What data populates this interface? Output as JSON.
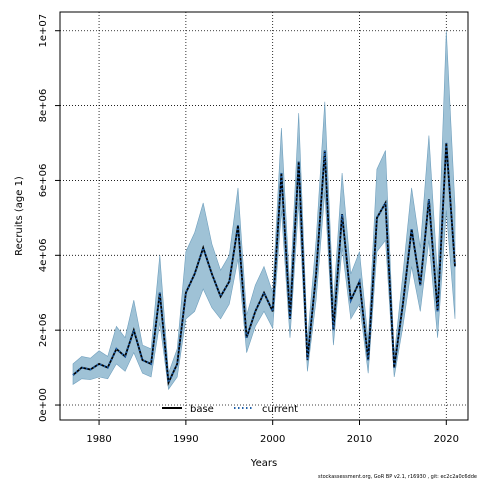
{
  "chart_data": {
    "type": "line",
    "xlabel": "Years",
    "ylabel": "Recruits (age 1)",
    "xlim": [
      1975.5,
      2022.5
    ],
    "ylim": [
      -400000,
      10500000
    ],
    "x_ticks": [
      1980,
      1990,
      2000,
      2010,
      2020
    ],
    "x_tick_labels": [
      "1980",
      "1990",
      "2000",
      "2010",
      "2020"
    ],
    "y_ticks": [
      0,
      2000000,
      4000000,
      6000000,
      8000000,
      10000000
    ],
    "y_tick_labels": [
      "0e+00",
      "2e+06",
      "4e+06",
      "6e+06",
      "8e+06",
      "1e+07"
    ],
    "grid": true,
    "legend_position": "bottom",
    "x": [
      1977,
      1978,
      1979,
      1980,
      1981,
      1982,
      1983,
      1984,
      1985,
      1986,
      1987,
      1988,
      1989,
      1990,
      1991,
      1992,
      1993,
      1994,
      1995,
      1996,
      1997,
      1998,
      1999,
      2000,
      2001,
      2002,
      2003,
      2004,
      2005,
      2006,
      2007,
      2008,
      2009,
      2010,
      2011,
      2012,
      2013,
      2014,
      2015,
      2016,
      2017,
      2018,
      2019,
      2020,
      2021
    ],
    "series": [
      {
        "name": "base",
        "style": "solid",
        "color": "#000000",
        "values": [
          800000,
          1000000,
          950000,
          1100000,
          1000000,
          1500000,
          1300000,
          2000000,
          1200000,
          1100000,
          3000000,
          600000,
          1100000,
          3000000,
          3500000,
          4200000,
          3500000,
          2900000,
          3300000,
          4800000,
          1800000,
          2500000,
          3000000,
          2500000,
          6200000,
          2300000,
          6500000,
          1200000,
          3500000,
          6800000,
          2000000,
          5100000,
          2800000,
          3300000,
          1200000,
          5000000,
          5400000,
          1000000,
          2700000,
          4700000,
          3200000,
          5500000,
          2500000,
          7000000,
          3700000
        ]
      },
      {
        "name": "current",
        "style": "dotted",
        "color": "#1f5fa8",
        "values": [
          800000,
          1000000,
          950000,
          1100000,
          1000000,
          1500000,
          1300000,
          2000000,
          1200000,
          1100000,
          3000000,
          600000,
          1100000,
          3000000,
          3500000,
          4200000,
          3500000,
          2900000,
          3300000,
          4800000,
          1800000,
          2500000,
          3000000,
          2500000,
          6200000,
          2300000,
          6500000,
          1200000,
          3500000,
          6800000,
          2000000,
          5100000,
          2800000,
          3300000,
          1200000,
          5000000,
          5400000,
          1000000,
          2700000,
          4700000,
          3200000,
          5500000,
          2500000,
          7000000,
          3700000
        ]
      }
    ],
    "band": {
      "color": "#9fc2d6",
      "edge_color": "#6f9fbd",
      "lower": [
        550000,
        700000,
        680000,
        750000,
        700000,
        1100000,
        900000,
        1400000,
        850000,
        750000,
        2200000,
        420000,
        750000,
        2300000,
        2500000,
        3100000,
        2600000,
        2300000,
        2700000,
        3900000,
        1400000,
        2100000,
        2500000,
        2050000,
        5200000,
        1800000,
        5400000,
        900000,
        2800000,
        5700000,
        1600000,
        4200000,
        2300000,
        2700000,
        850000,
        4100000,
        4400000,
        750000,
        2100000,
        3700000,
        2500000,
        4400000,
        1800000,
        5200000,
        2300000
      ],
      "upper": [
        1100000,
        1300000,
        1250000,
        1450000,
        1300000,
        2100000,
        1800000,
        2800000,
        1600000,
        1500000,
        4000000,
        850000,
        1500000,
        4100000,
        4600000,
        5400000,
        4300000,
        3600000,
        4000000,
        5800000,
        2400000,
        3200000,
        3700000,
        3000000,
        7400000,
        3000000,
        7800000,
        1700000,
        4400000,
        8100000,
        2700000,
        6200000,
        3500000,
        4100000,
        1700000,
        6300000,
        6800000,
        1300000,
        3500000,
        5800000,
        4200000,
        7200000,
        3400000,
        10000000,
        5300000
      ]
    },
    "legend": [
      {
        "label": "base",
        "style": "solid"
      },
      {
        "label": "current",
        "style": "dotted"
      }
    ]
  },
  "footer": "stockassessment.org, GoR BP v2.1, r16930 , git: ec2c2a0c6dde"
}
